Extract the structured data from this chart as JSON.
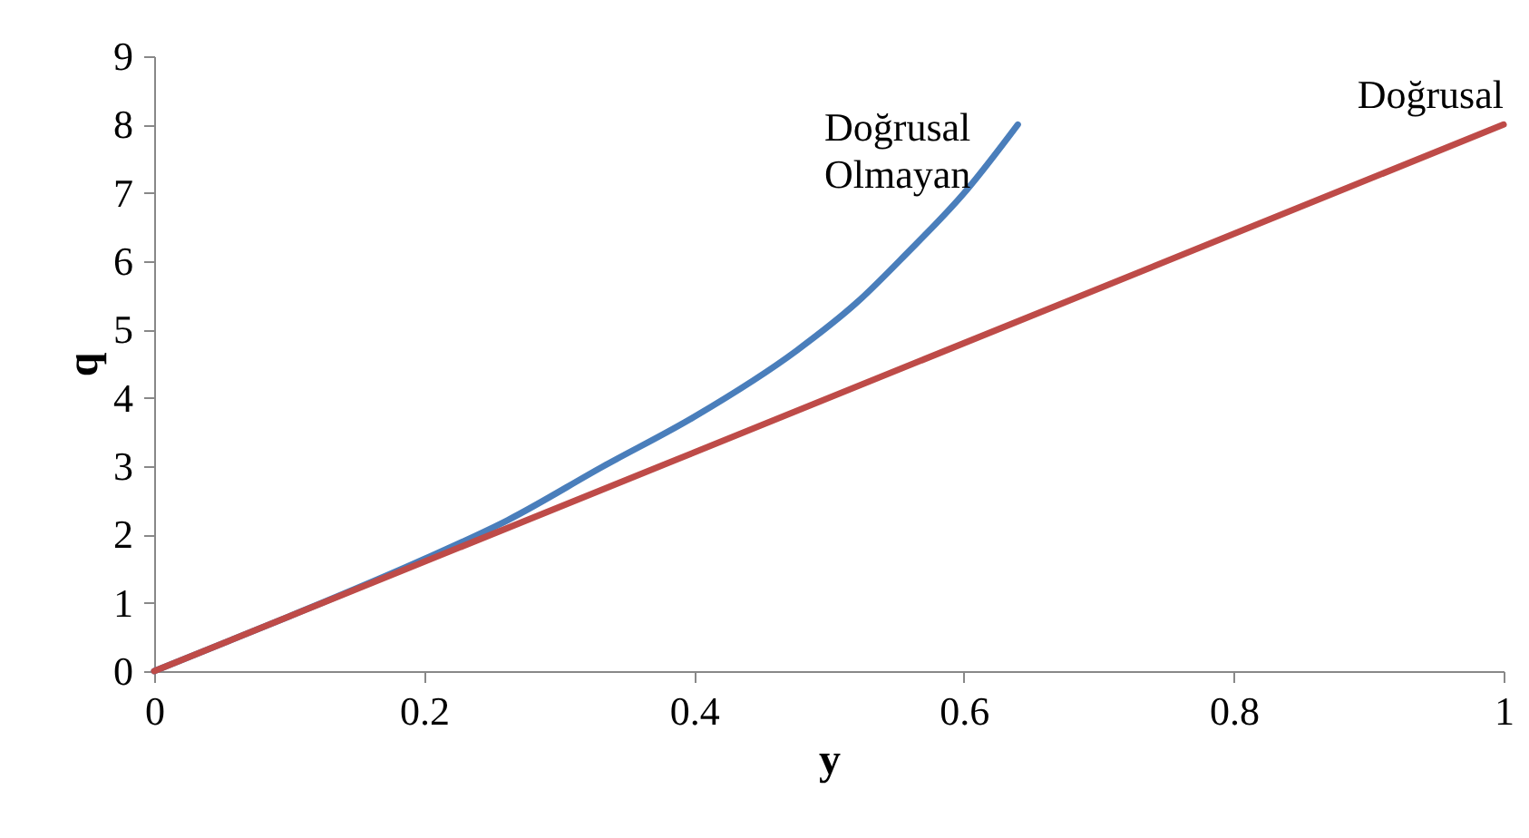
{
  "chart_data": {
    "type": "line",
    "xlabel": "y",
    "ylabel": "q",
    "xlim": [
      0,
      1
    ],
    "xticks": [
      0,
      0.2,
      0.4,
      0.6,
      0.8,
      1
    ],
    "ylim": [
      0,
      9
    ],
    "yticks": [
      0,
      1,
      2,
      3,
      4,
      5,
      6,
      7,
      8,
      9
    ],
    "marker": "none",
    "series": [
      {
        "name": "Doğrusal Olmayan",
        "color": "#4a7ebb",
        "x": [
          0,
          0.1,
          0.2,
          0.262,
          0.333,
          0.4,
          0.476,
          0.521,
          0.557,
          0.602,
          0.64
        ],
        "values": [
          0,
          0.8,
          1.64,
          2.21,
          3.0,
          3.72,
          4.69,
          5.4,
          6.1,
          7.04,
          8.0
        ]
      },
      {
        "name": "Doğrusal",
        "color": "#be4b48",
        "x": [
          0,
          1
        ],
        "values": [
          0,
          8
        ]
      }
    ]
  }
}
